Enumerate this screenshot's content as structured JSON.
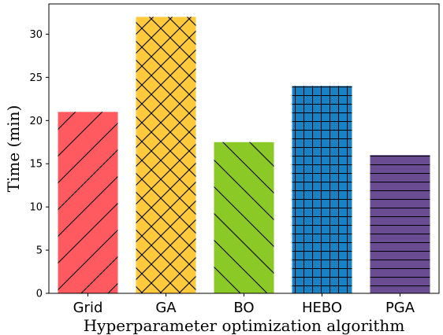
{
  "chart_data": {
    "type": "bar",
    "title": "",
    "xlabel": "Hyperparameter optimization algorithm",
    "ylabel": "Time (min)",
    "ylim": [
      0,
      33.5
    ],
    "yticks": [
      0,
      5,
      10,
      15,
      20,
      25,
      30
    ],
    "grid": false,
    "categories": [
      "Grid",
      "GA",
      "BO",
      "HEBO",
      "PGA"
    ],
    "values": [
      21,
      32,
      17.5,
      24,
      16
    ],
    "colors": [
      "#FF5A5F",
      "#FFC93C",
      "#8BC926",
      "#1982C4",
      "#6A4C93"
    ],
    "hatches": [
      "forward-diagonal",
      "cross-diagonal",
      "back-diagonal",
      "grid",
      "horizontal"
    ]
  }
}
